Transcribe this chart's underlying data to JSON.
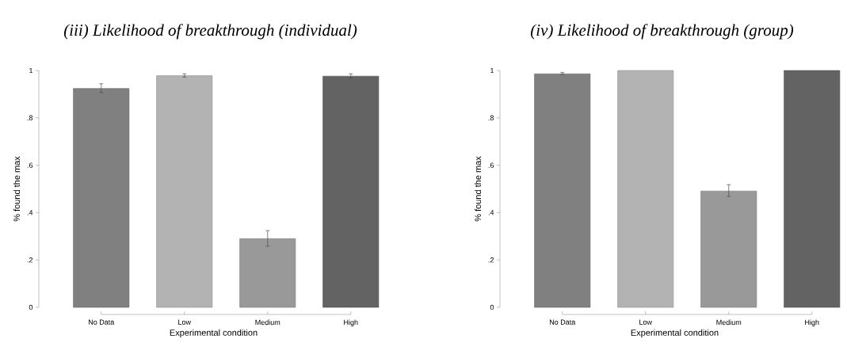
{
  "chart_data": [
    {
      "type": "bar",
      "title": "(iii) Likelihood of breakthrough (individual)",
      "xlabel": "Experimental condition",
      "ylabel": "% found the max",
      "categories": [
        "No Data",
        "Low",
        "Medium",
        "High"
      ],
      "values": [
        0.924,
        0.978,
        0.29,
        0.976
      ],
      "errors": [
        [
          0.907,
          0.944
        ],
        [
          0.972,
          0.986
        ],
        [
          0.258,
          0.324
        ],
        [
          0.968,
          0.986
        ]
      ],
      "colors": [
        "#808080",
        "#b3b3b3",
        "#999999",
        "#636363"
      ],
      "ylim": [
        0,
        1
      ],
      "yticks": [
        0,
        {
          "value": 0.2,
          "label": ".2"
        },
        {
          "value": 0.4,
          "label": ".4"
        },
        {
          "value": 0.6,
          "label": ".6"
        },
        {
          "value": 0.8,
          "label": ".8"
        },
        1
      ]
    },
    {
      "type": "bar",
      "title": "(iv) Likelihood of breakthrough (group)",
      "xlabel": "Experimental condition",
      "ylabel": "% found the max",
      "categories": [
        "No Data",
        "Low",
        "Medium",
        "High"
      ],
      "values": [
        0.986,
        1.0,
        0.491,
        1.0
      ],
      "errors": [
        [
          0.983,
          0.992
        ],
        null,
        [
          0.468,
          0.518
        ],
        null
      ],
      "colors": [
        "#808080",
        "#b3b3b3",
        "#999999",
        "#636363"
      ],
      "ylim": [
        0,
        1
      ],
      "yticks": [
        0,
        {
          "value": 0.2,
          "label": ".2"
        },
        {
          "value": 0.4,
          "label": ".4"
        },
        {
          "value": 0.6,
          "label": ".6"
        },
        {
          "value": 0.8,
          "label": ".8"
        },
        1
      ]
    }
  ]
}
